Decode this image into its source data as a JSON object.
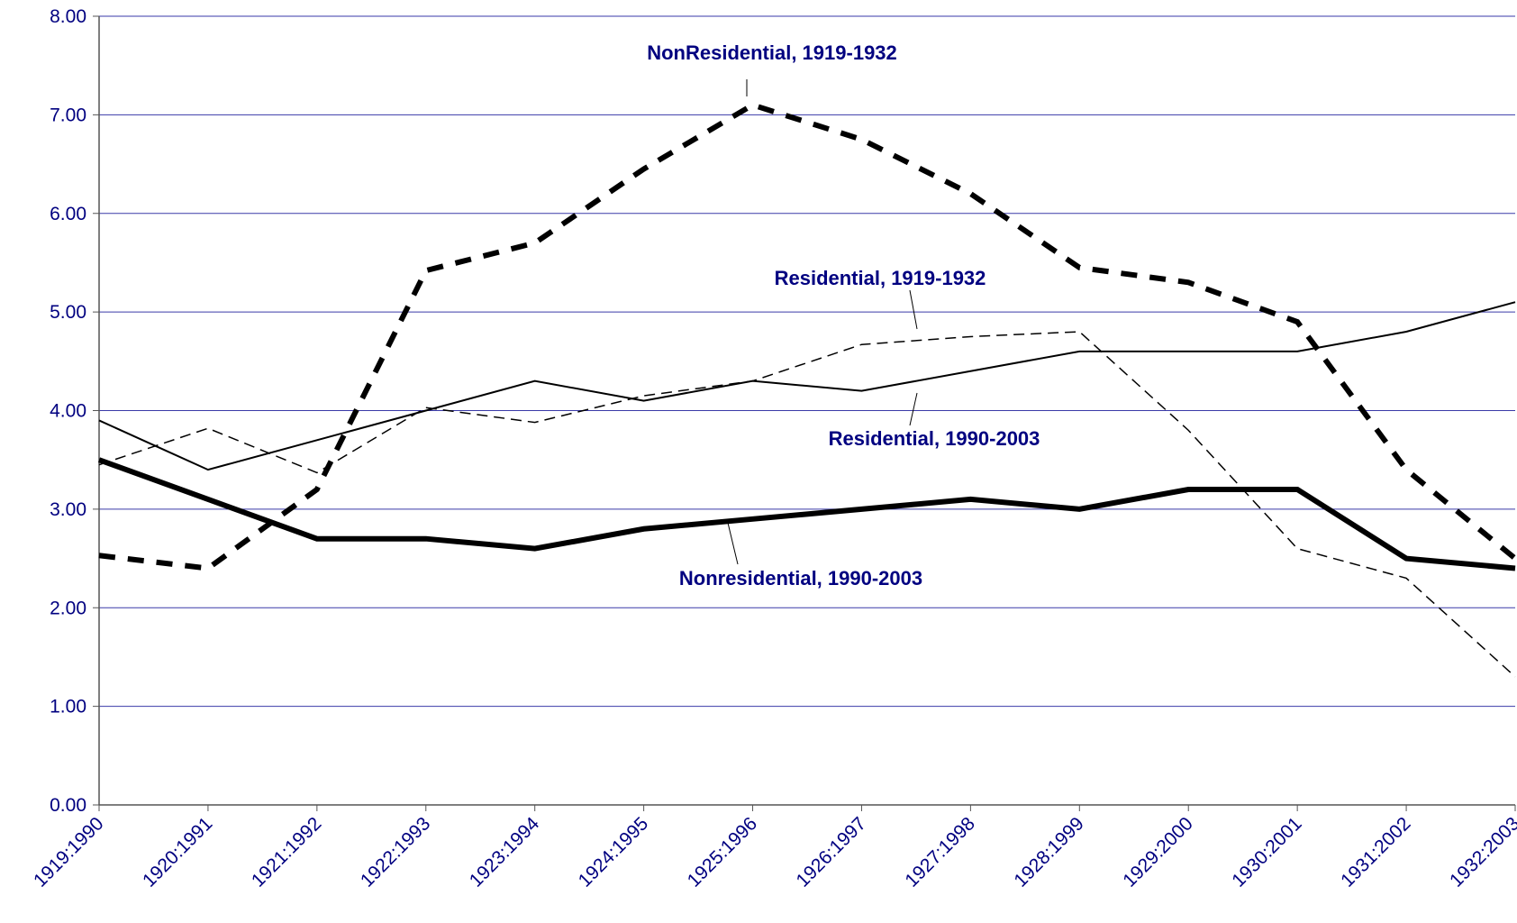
{
  "chart_data": {
    "type": "line",
    "categories": [
      "1919:1990",
      "1920:1991",
      "1921:1992",
      "1922:1993",
      "1923:1994",
      "1924:1995",
      "1925:1996",
      "1926:1997",
      "1927:1998",
      "1928:1999",
      "1929:2000",
      "1930:2001",
      "1931:2002",
      "1932:2003"
    ],
    "series": [
      {
        "name": "NonResidential, 1919-1932",
        "color": "#000000",
        "values": [
          2.53,
          2.4,
          3.2,
          5.42,
          5.7,
          6.45,
          7.1,
          6.75,
          6.2,
          5.45,
          5.3,
          4.9,
          3.4,
          2.5
        ]
      },
      {
        "name": "Residential, 1919-1932",
        "color": "#000000",
        "values": [
          3.45,
          3.82,
          3.37,
          4.03,
          3.88,
          4.15,
          4.3,
          4.67,
          4.75,
          4.8,
          3.8,
          2.6,
          2.3,
          1.3
        ]
      },
      {
        "name": "Residential, 1990-2003",
        "color": "#000000",
        "values": [
          3.9,
          3.4,
          3.7,
          4.0,
          4.3,
          4.1,
          4.3,
          4.2,
          4.4,
          4.6,
          4.6,
          4.6,
          4.8,
          5.1
        ]
      },
      {
        "name": "Nonresidential, 1990-2003",
        "color": "#000000",
        "values": [
          3.5,
          3.1,
          2.7,
          2.7,
          2.6,
          2.8,
          2.9,
          3.0,
          3.1,
          3.0,
          3.2,
          3.2,
          2.5,
          2.4
        ]
      }
    ],
    "ylim": [
      0,
      8
    ],
    "yticks": [
      {
        "value": 0,
        "label": "0.00"
      },
      {
        "value": 1,
        "label": "1.00"
      },
      {
        "value": 2,
        "label": "2.00"
      },
      {
        "value": 3,
        "label": "3.00"
      },
      {
        "value": 4,
        "label": "4.00"
      },
      {
        "value": 5,
        "label": "5.00"
      },
      {
        "value": 6,
        "label": "6.00"
      },
      {
        "value": 7,
        "label": "7.00"
      },
      {
        "value": 8,
        "label": "8.00"
      }
    ],
    "grid": true
  }
}
